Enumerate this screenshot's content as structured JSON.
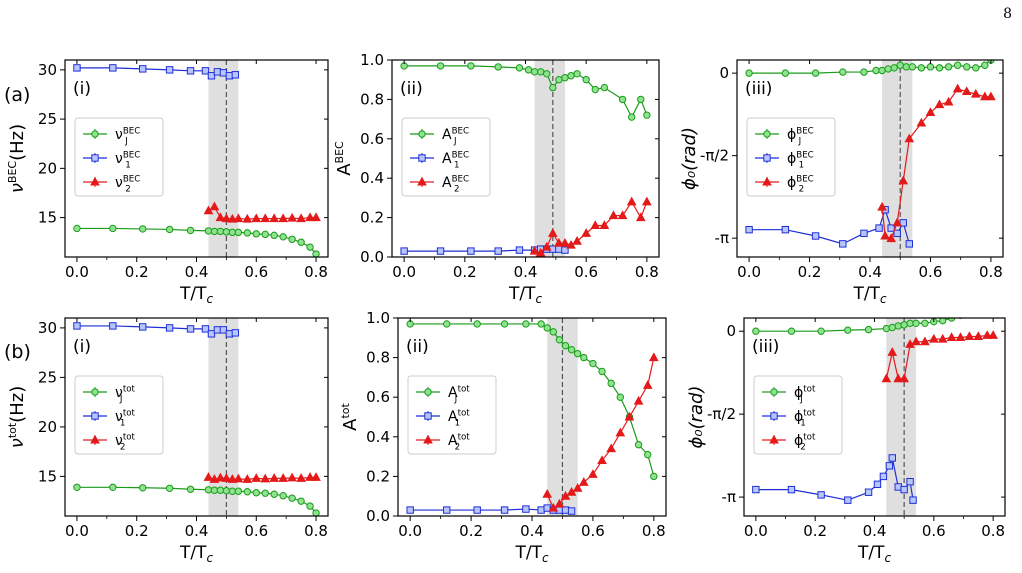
{
  "page_number": "8",
  "row_labels": [
    "(a)",
    "(b)"
  ],
  "colors": {
    "J": "#1a9b1a",
    "J_fill": "#8fe38f",
    "one": "#1f2fd6",
    "one_fill": "#b8c6ff",
    "two": "#e41a1a",
    "band": "#d9d9d9"
  },
  "chart_data": [
    {
      "type": "line",
      "panel": "(i)",
      "xlabel": "T/Tₑ",
      "xlabel_main": "T/T",
      "xlabel_sub": "c",
      "ylabel_main": "ν",
      "ylabel_sup": "BEC",
      "ylabel_unit": "(Hz)",
      "xlim": [
        -0.04,
        0.84
      ],
      "ylim": [
        11,
        31
      ],
      "xticks": [
        0.0,
        0.2,
        0.4,
        0.6,
        0.8
      ],
      "yticks": [
        15,
        20,
        25,
        30
      ],
      "ytick_labels": [
        "15",
        "20",
        "25",
        "30"
      ],
      "band": [
        0.44,
        0.54
      ],
      "vline": 0.5,
      "legend_pos": "center-left",
      "series": [
        {
          "name": "ν_J^BEC",
          "sym": "ν",
          "sup": "BEC",
          "sub": "J",
          "marker": "circle",
          "color": "J",
          "x": [
            0.0,
            0.12,
            0.22,
            0.31,
            0.38,
            0.44,
            0.46,
            0.48,
            0.5,
            0.52,
            0.54,
            0.57,
            0.6,
            0.63,
            0.66,
            0.69,
            0.72,
            0.75,
            0.78,
            0.8
          ],
          "y": [
            13.9,
            13.9,
            13.85,
            13.8,
            13.7,
            13.65,
            13.6,
            13.6,
            13.55,
            13.5,
            13.5,
            13.45,
            13.35,
            13.3,
            13.2,
            13.05,
            12.8,
            12.5,
            12.0,
            11.3
          ]
        },
        {
          "name": "ν_1^BEC",
          "sym": "ν",
          "sup": "BEC",
          "sub": "1",
          "marker": "square",
          "color": "one",
          "x": [
            0.0,
            0.12,
            0.22,
            0.31,
            0.38,
            0.43,
            0.45,
            0.47,
            0.49,
            0.51,
            0.53
          ],
          "y": [
            30.2,
            30.2,
            30.1,
            30.0,
            29.9,
            29.9,
            29.4,
            29.8,
            29.7,
            29.4,
            29.5
          ]
        },
        {
          "name": "ν_2^BEC",
          "sym": "ν",
          "sup": "BEC",
          "sub": "2",
          "marker": "triangle",
          "color": "two",
          "x": [
            0.44,
            0.46,
            0.48,
            0.5,
            0.52,
            0.54,
            0.57,
            0.6,
            0.63,
            0.66,
            0.69,
            0.72,
            0.75,
            0.78,
            0.8
          ],
          "y": [
            15.7,
            16.1,
            15.0,
            14.9,
            14.85,
            14.9,
            14.85,
            14.9,
            14.9,
            14.9,
            14.9,
            14.95,
            14.9,
            15.0,
            15.0
          ]
        }
      ]
    },
    {
      "type": "line",
      "panel": "(ii)",
      "xlabel_main": "T/T",
      "xlabel_sub": "c",
      "ylabel_main": "A",
      "ylabel_sup": "BEC",
      "ylabel_unit": "",
      "xlim": [
        -0.04,
        0.84
      ],
      "ylim": [
        0,
        1.0
      ],
      "xticks": [
        0.0,
        0.2,
        0.4,
        0.6,
        0.8
      ],
      "yticks": [
        0.0,
        0.2,
        0.4,
        0.6,
        0.8,
        1.0
      ],
      "ytick_labels": [
        "0.0",
        "0.2",
        "0.4",
        "0.6",
        "0.8",
        "1.0"
      ],
      "band": [
        0.43,
        0.53
      ],
      "vline": 0.49,
      "legend_pos": "center-left",
      "series": [
        {
          "name": "A_J^BEC",
          "sym": "A",
          "sup": "BEC",
          "sub": "J",
          "marker": "circle",
          "color": "J",
          "x": [
            0.0,
            0.12,
            0.22,
            0.31,
            0.38,
            0.41,
            0.43,
            0.45,
            0.47,
            0.49,
            0.51,
            0.53,
            0.55,
            0.57,
            0.6,
            0.63,
            0.66,
            0.72,
            0.75,
            0.78,
            0.8
          ],
          "y": [
            0.97,
            0.97,
            0.97,
            0.965,
            0.96,
            0.95,
            0.94,
            0.94,
            0.93,
            0.86,
            0.9,
            0.91,
            0.92,
            0.93,
            0.9,
            0.85,
            0.86,
            0.8,
            0.71,
            0.8,
            0.72
          ]
        },
        {
          "name": "A_1^BEC",
          "sym": "A",
          "sup": "BEC",
          "sub": "1",
          "marker": "square",
          "color": "one",
          "x": [
            0.0,
            0.12,
            0.22,
            0.31,
            0.38,
            0.43,
            0.45,
            0.47,
            0.49,
            0.51,
            0.53
          ],
          "y": [
            0.03,
            0.03,
            0.03,
            0.03,
            0.035,
            0.035,
            0.04,
            0.04,
            0.04,
            0.04,
            0.035
          ]
        },
        {
          "name": "A_2^BEC",
          "sym": "A",
          "sup": "BEC",
          "sub": "2",
          "marker": "triangle",
          "color": "two",
          "x": [
            0.43,
            0.45,
            0.47,
            0.49,
            0.51,
            0.53,
            0.55,
            0.57,
            0.6,
            0.63,
            0.66,
            0.69,
            0.72,
            0.75,
            0.78,
            0.8
          ],
          "y": [
            0.03,
            0.02,
            0.05,
            0.12,
            0.07,
            0.07,
            0.06,
            0.08,
            0.12,
            0.16,
            0.16,
            0.21,
            0.21,
            0.28,
            0.2,
            0.28
          ]
        }
      ]
    },
    {
      "type": "line",
      "panel": "(iii)",
      "xlabel_main": "T/T",
      "xlabel_sub": "c",
      "ylabel_main": "ϕ₀(rad)",
      "ylabel_sup": "",
      "ylabel_unit": "",
      "xlim": [
        -0.04,
        0.84
      ],
      "ylim": [
        -3.5,
        0.25
      ],
      "xticks": [
        0.0,
        0.2,
        0.4,
        0.6,
        0.8
      ],
      "yticks": [
        0,
        -1.5708,
        -3.1416
      ],
      "ytick_labels": [
        "0",
        "-π/2",
        "-π"
      ],
      "band": [
        0.44,
        0.54
      ],
      "vline": 0.5,
      "legend_pos": "center-left",
      "series": [
        {
          "name": "ϕ_J^BEC",
          "sym": "ϕ",
          "sup": "BEC",
          "sub": "J",
          "marker": "circle",
          "color": "J",
          "x": [
            0.0,
            0.12,
            0.22,
            0.31,
            0.38,
            0.42,
            0.44,
            0.46,
            0.48,
            0.5,
            0.52,
            0.54,
            0.57,
            0.6,
            0.63,
            0.66,
            0.69,
            0.72,
            0.75,
            0.78,
            0.8
          ],
          "y": [
            0.0,
            0.0,
            0.0,
            0.02,
            0.02,
            0.05,
            0.05,
            0.08,
            0.1,
            0.15,
            0.12,
            0.12,
            0.1,
            0.12,
            0.1,
            0.12,
            0.15,
            0.12,
            0.1,
            0.15,
            0.25
          ]
        },
        {
          "name": "ϕ_1^BEC",
          "sym": "ϕ",
          "sup": "BEC",
          "sub": "1",
          "marker": "square",
          "color": "one",
          "x": [
            0.0,
            0.12,
            0.22,
            0.31,
            0.38,
            0.43,
            0.45,
            0.47,
            0.49,
            0.51,
            0.53
          ],
          "y": [
            -2.98,
            -2.98,
            -3.1,
            -3.25,
            -3.05,
            -2.95,
            -2.6,
            -2.95,
            -3.05,
            -2.85,
            -3.25
          ]
        },
        {
          "name": "ϕ_2^BEC",
          "sym": "ϕ",
          "sup": "BEC",
          "sub": "2",
          "marker": "triangle",
          "color": "two",
          "x": [
            0.44,
            0.45,
            0.47,
            0.49,
            0.51,
            0.53,
            0.57,
            0.6,
            0.63,
            0.66,
            0.69,
            0.72,
            0.75,
            0.78,
            0.8
          ],
          "y": [
            -2.55,
            -3.1,
            -3.15,
            -2.85,
            -2.05,
            -1.25,
            -0.95,
            -0.75,
            -0.6,
            -0.55,
            -0.3,
            -0.35,
            -0.4,
            -0.45,
            -0.45
          ]
        }
      ]
    },
    {
      "type": "line",
      "panel": "(i)",
      "xlabel_main": "T/T",
      "xlabel_sub": "c",
      "ylabel_main": "ν",
      "ylabel_sup": "tot",
      "ylabel_unit": "(Hz)",
      "xlim": [
        -0.04,
        0.84
      ],
      "ylim": [
        11,
        31
      ],
      "xticks": [
        0.0,
        0.2,
        0.4,
        0.6,
        0.8
      ],
      "yticks": [
        15,
        20,
        25,
        30
      ],
      "ytick_labels": [
        "15",
        "20",
        "25",
        "30"
      ],
      "band": [
        0.44,
        0.54
      ],
      "vline": 0.5,
      "legend_pos": "center-left",
      "series": [
        {
          "name": "ν_J^tot",
          "sym": "ν",
          "sup": "tot",
          "sub": "J",
          "marker": "circle",
          "color": "J",
          "x": [
            0.0,
            0.12,
            0.22,
            0.31,
            0.38,
            0.44,
            0.46,
            0.48,
            0.5,
            0.52,
            0.54,
            0.57,
            0.6,
            0.63,
            0.66,
            0.69,
            0.72,
            0.75,
            0.78,
            0.8
          ],
          "y": [
            13.9,
            13.9,
            13.85,
            13.8,
            13.7,
            13.65,
            13.6,
            13.6,
            13.55,
            13.5,
            13.5,
            13.45,
            13.35,
            13.3,
            13.2,
            13.05,
            12.8,
            12.5,
            12.0,
            11.3
          ]
        },
        {
          "name": "ν_1^tot",
          "sym": "ν",
          "sup": "tot",
          "sub": "1",
          "marker": "square",
          "color": "one",
          "x": [
            0.0,
            0.12,
            0.22,
            0.31,
            0.38,
            0.43,
            0.45,
            0.47,
            0.49,
            0.51,
            0.53
          ],
          "y": [
            30.2,
            30.2,
            30.1,
            30.0,
            29.9,
            29.9,
            29.4,
            29.8,
            29.8,
            29.4,
            29.5
          ]
        },
        {
          "name": "ν_2^tot",
          "sym": "ν",
          "sup": "tot",
          "sub": "2",
          "marker": "triangle",
          "color": "two",
          "x": [
            0.44,
            0.46,
            0.48,
            0.5,
            0.52,
            0.54,
            0.57,
            0.6,
            0.63,
            0.66,
            0.69,
            0.72,
            0.75,
            0.78,
            0.8
          ],
          "y": [
            14.9,
            14.7,
            14.85,
            14.8,
            14.7,
            14.75,
            14.7,
            14.8,
            14.75,
            14.8,
            14.8,
            14.85,
            14.8,
            14.9,
            14.9
          ]
        }
      ]
    },
    {
      "type": "line",
      "panel": "(ii)",
      "xlabel_main": "T/T",
      "xlabel_sub": "c",
      "ylabel_main": "A",
      "ylabel_sup": "tot",
      "ylabel_unit": "",
      "xlim": [
        -0.04,
        0.84
      ],
      "ylim": [
        0,
        1.0
      ],
      "xticks": [
        0.0,
        0.2,
        0.4,
        0.6,
        0.8
      ],
      "yticks": [
        0.0,
        0.2,
        0.4,
        0.6,
        0.8,
        1.0
      ],
      "ytick_labels": [
        "0.0",
        "0.2",
        "0.4",
        "0.6",
        "0.8",
        "1.0"
      ],
      "band": [
        0.45,
        0.55
      ],
      "vline": 0.5,
      "legend_pos": "center-left",
      "series": [
        {
          "name": "A_J^tot",
          "sym": "A",
          "sup": "tot",
          "sub": "J",
          "marker": "circle",
          "color": "J",
          "x": [
            0.0,
            0.12,
            0.22,
            0.31,
            0.38,
            0.43,
            0.45,
            0.47,
            0.49,
            0.51,
            0.53,
            0.55,
            0.57,
            0.6,
            0.63,
            0.66,
            0.69,
            0.72,
            0.75,
            0.78,
            0.8
          ],
          "y": [
            0.97,
            0.97,
            0.97,
            0.97,
            0.97,
            0.97,
            0.95,
            0.93,
            0.89,
            0.86,
            0.84,
            0.82,
            0.8,
            0.77,
            0.73,
            0.67,
            0.6,
            0.5,
            0.36,
            0.31,
            0.2
          ]
        },
        {
          "name": "A_1^tot",
          "sym": "A",
          "sup": "tot",
          "sub": "1",
          "marker": "square",
          "color": "one",
          "x": [
            0.0,
            0.12,
            0.22,
            0.31,
            0.38,
            0.43,
            0.45,
            0.47,
            0.49,
            0.51,
            0.53
          ],
          "y": [
            0.03,
            0.03,
            0.03,
            0.03,
            0.035,
            0.03,
            0.04,
            0.03,
            0.03,
            0.03,
            0.025
          ]
        },
        {
          "name": "A_2^tot",
          "sym": "A",
          "sup": "tot",
          "sub": "2",
          "marker": "triangle",
          "color": "two",
          "x": [
            0.45,
            0.47,
            0.49,
            0.51,
            0.53,
            0.55,
            0.57,
            0.6,
            0.63,
            0.66,
            0.69,
            0.72,
            0.75,
            0.78,
            0.8
          ],
          "y": [
            0.11,
            0.04,
            0.06,
            0.1,
            0.12,
            0.14,
            0.17,
            0.21,
            0.28,
            0.34,
            0.42,
            0.5,
            0.58,
            0.66,
            0.8
          ]
        }
      ]
    },
    {
      "type": "line",
      "panel": "(iii)",
      "xlabel_main": "T/T",
      "xlabel_sub": "c",
      "ylabel_main": "ϕ₀(rad)",
      "ylabel_sup": "",
      "ylabel_unit": "",
      "xlim": [
        -0.04,
        0.84
      ],
      "ylim": [
        -3.5,
        0.25
      ],
      "xticks": [
        0.0,
        0.2,
        0.4,
        0.6,
        0.8
      ],
      "yticks": [
        0,
        -1.5708,
        -3.1416
      ],
      "ytick_labels": [
        "0",
        "-π/2",
        "-π"
      ],
      "band": [
        0.44,
        0.54
      ],
      "vline": 0.5,
      "legend_pos": "center-left",
      "series": [
        {
          "name": "ϕ_J^tot",
          "sym": "ϕ",
          "sup": "tot",
          "sub": "J",
          "marker": "circle",
          "color": "J",
          "x": [
            0.0,
            0.12,
            0.22,
            0.31,
            0.38,
            0.44,
            0.46,
            0.48,
            0.5,
            0.52,
            0.54,
            0.57,
            0.6,
            0.63,
            0.66,
            0.69,
            0.72,
            0.75,
            0.78,
            0.8
          ],
          "y": [
            0.0,
            0.0,
            0.0,
            0.02,
            0.03,
            0.05,
            0.07,
            0.1,
            0.12,
            0.15,
            0.15,
            0.15,
            0.18,
            0.2,
            0.25,
            0.3,
            0.35,
            0.4,
            0.5,
            0.7
          ]
        },
        {
          "name": "ϕ_1^tot",
          "sym": "ϕ",
          "sup": "tot",
          "sub": "1",
          "marker": "square",
          "color": "one",
          "x": [
            0.0,
            0.12,
            0.22,
            0.31,
            0.38,
            0.41,
            0.43,
            0.45,
            0.46,
            0.48,
            0.5,
            0.52,
            0.53
          ],
          "y": [
            -3.0,
            -3.0,
            -3.1,
            -3.2,
            -3.05,
            -2.9,
            -2.75,
            -2.55,
            -2.4,
            -2.95,
            -3.0,
            -2.85,
            -3.2
          ]
        },
        {
          "name": "ϕ_2^tot",
          "sym": "ϕ",
          "sup": "tot",
          "sub": "2",
          "marker": "triangle",
          "color": "two",
          "x": [
            0.44,
            0.46,
            0.48,
            0.5,
            0.52,
            0.54,
            0.57,
            0.6,
            0.63,
            0.66,
            0.69,
            0.72,
            0.75,
            0.78,
            0.8
          ],
          "y": [
            -0.9,
            -0.4,
            -0.9,
            -0.9,
            -0.25,
            -0.2,
            -0.2,
            -0.15,
            -0.15,
            -0.12,
            -0.12,
            -0.1,
            -0.1,
            -0.08,
            -0.08
          ]
        }
      ]
    }
  ]
}
